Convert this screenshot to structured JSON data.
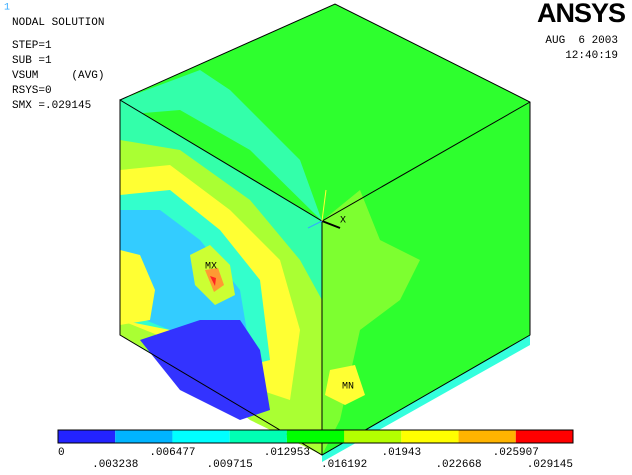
{
  "header": {
    "window_number": "1",
    "title": "NODAL SOLUTION",
    "lines": [
      "STEP=1",
      "SUB =1",
      "VSUM     (AVG)",
      "RSYS=0",
      "SMX =.029145"
    ]
  },
  "logo": "ANSYS",
  "date": "AUG  6 2003",
  "time": "12:40:19",
  "plot": {
    "annotations": [
      "MX",
      "MN",
      "X"
    ]
  },
  "legend": {
    "colors": [
      "#2323ff",
      "#00b4ff",
      "#00ffff",
      "#00ffb4",
      "#00ff00",
      "#b4ff00",
      "#ffff00",
      "#ffb400",
      "#ff0000"
    ],
    "labels": [
      "0",
      ".003238",
      ".006477",
      ".009715",
      ".012953",
      ".016192",
      ".01943",
      ".022668",
      ".025907",
      ".029145"
    ]
  }
}
